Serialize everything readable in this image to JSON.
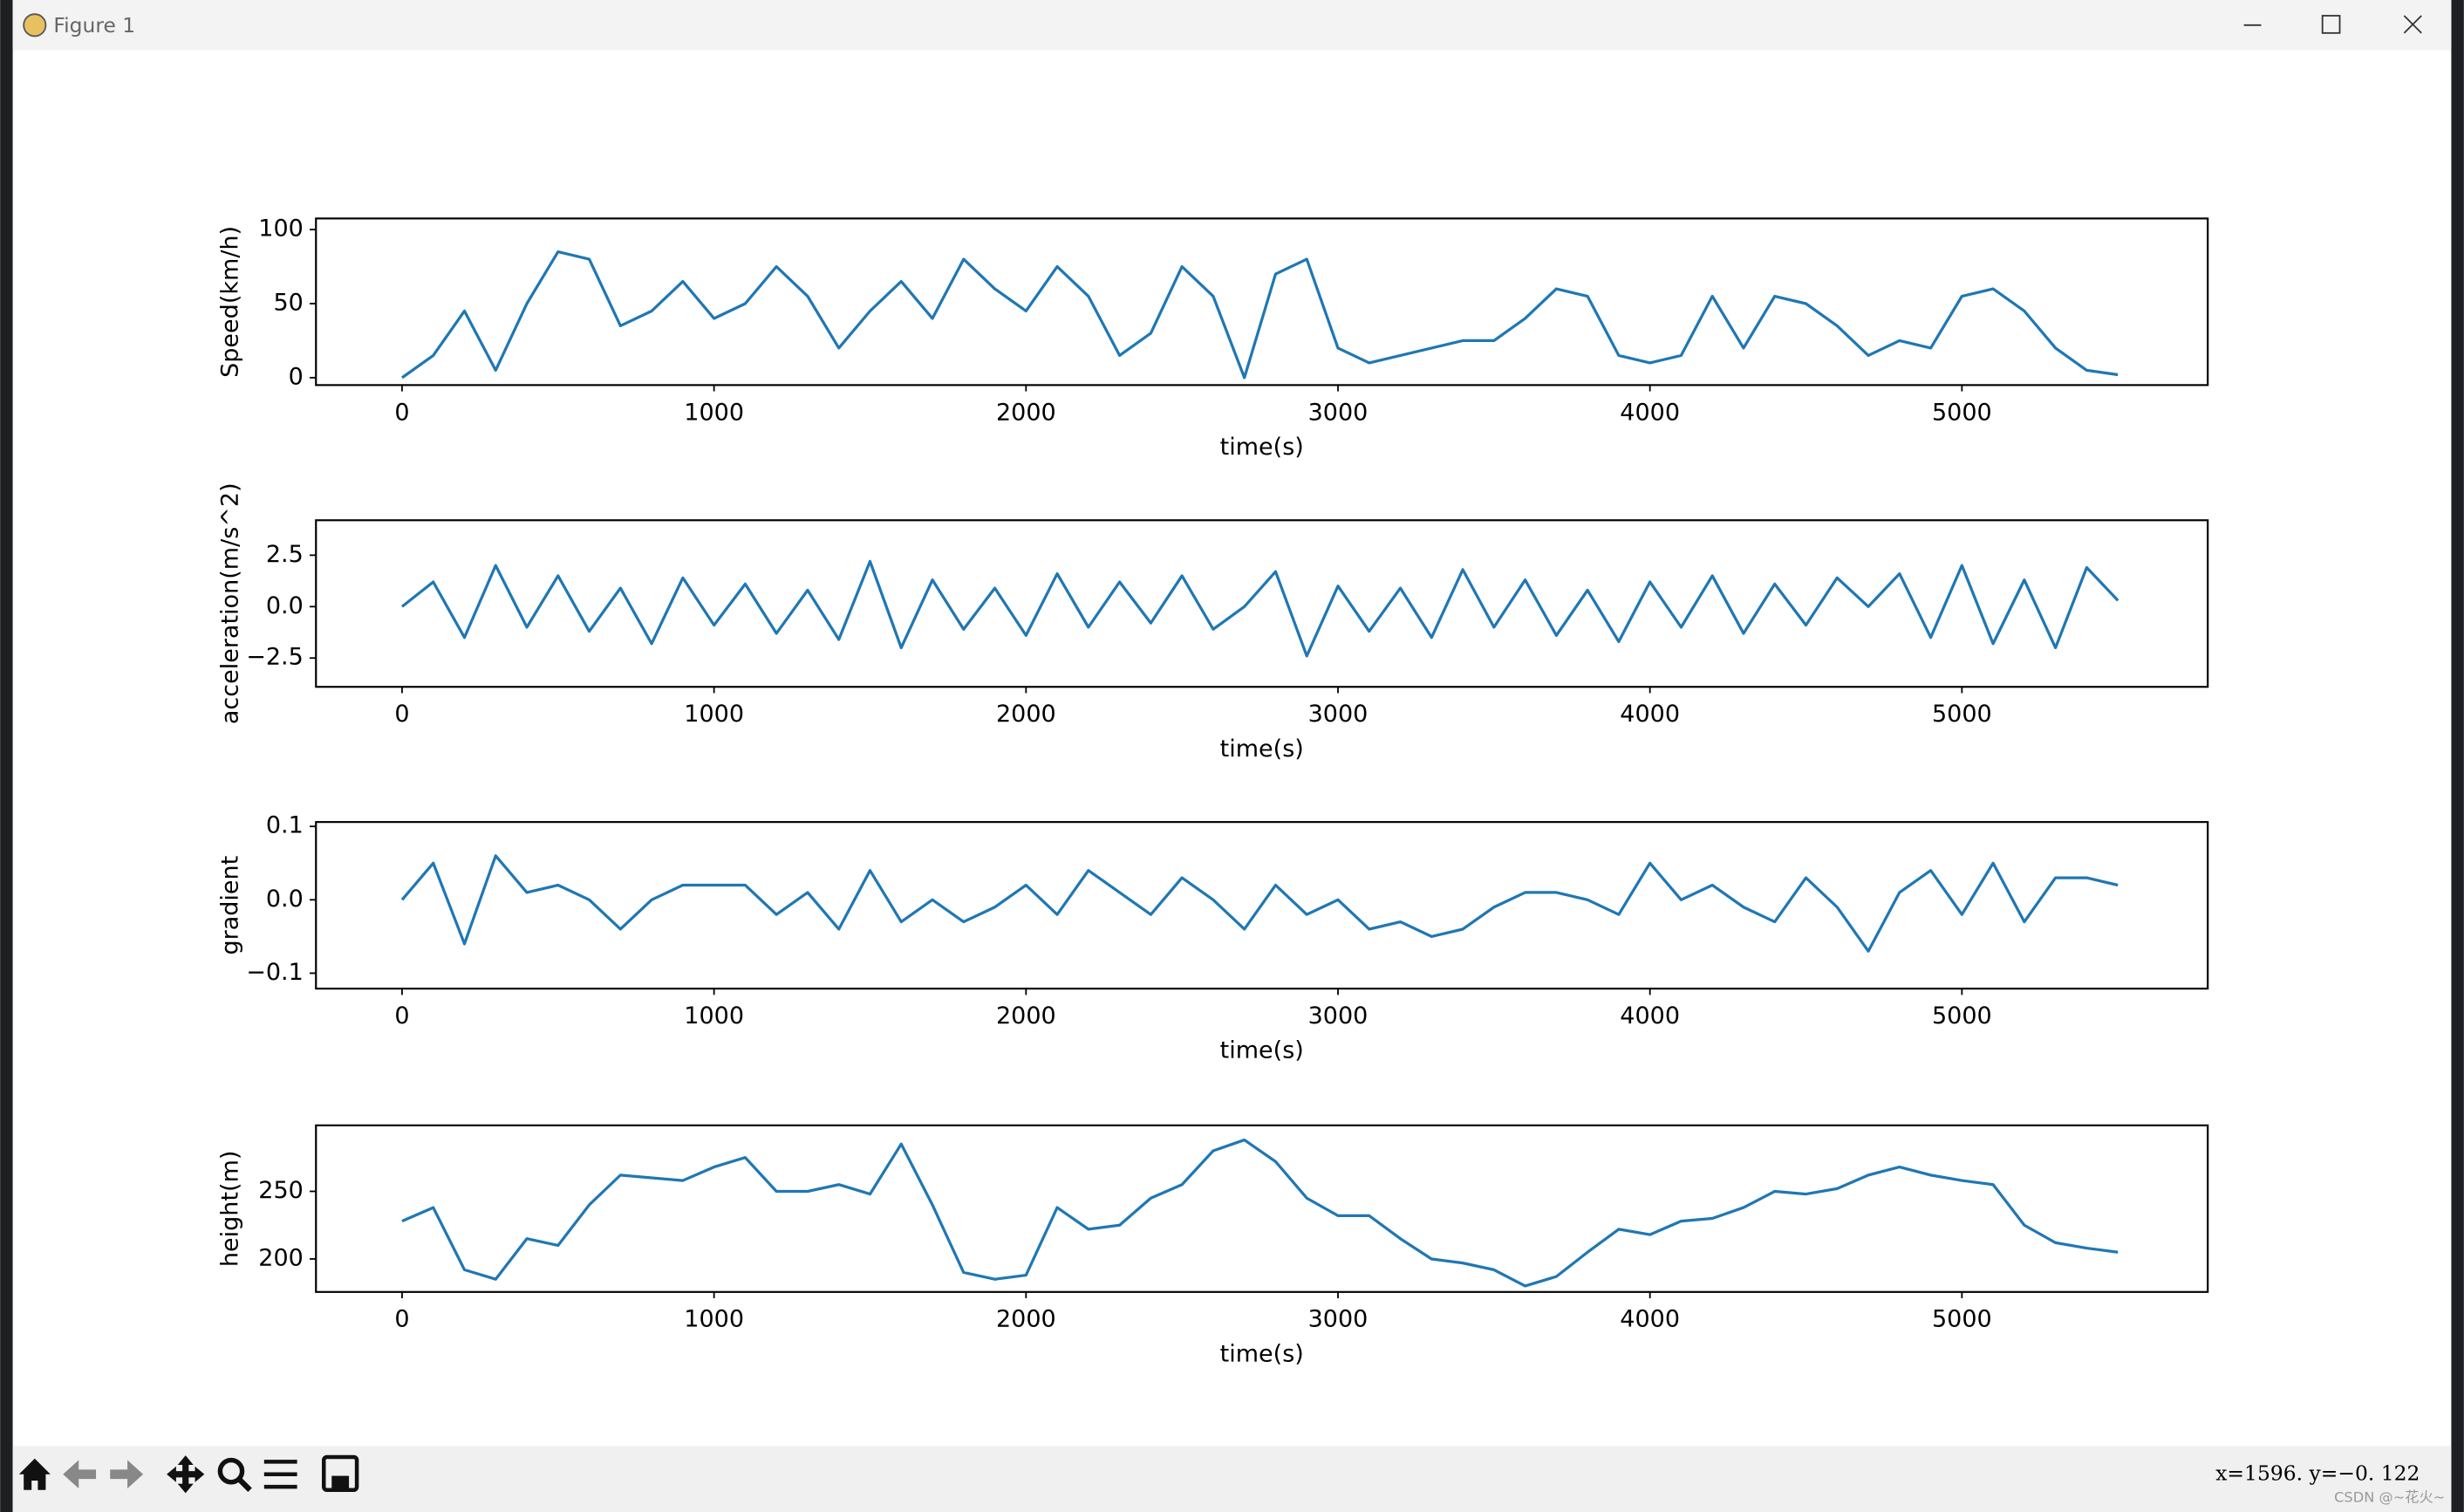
{
  "window": {
    "title": "Figure 1"
  },
  "status": "x=1596.   y=−0. 122",
  "watermark": "CSDN @~花火~",
  "chart_data": [
    {
      "type": "line",
      "xlabel": "time(s)",
      "ylabel": "Speed(km/h)",
      "color": "#1f77b4",
      "x": [
        0,
        100,
        200,
        300,
        400,
        500,
        600,
        700,
        800,
        900,
        1000,
        1100,
        1200,
        1300,
        1400,
        1500,
        1600,
        1700,
        1800,
        1900,
        2000,
        2100,
        2200,
        2300,
        2400,
        2500,
        2600,
        2700,
        2800,
        2900,
        3000,
        3100,
        3200,
        3300,
        3400,
        3500,
        3600,
        3700,
        3800,
        3900,
        4000,
        4100,
        4200,
        4300,
        4400,
        4500,
        4600,
        4700,
        4800,
        4900,
        5000,
        5100,
        5200,
        5300,
        5400,
        5500
      ],
      "values": [
        0,
        15,
        45,
        5,
        50,
        85,
        80,
        35,
        45,
        65,
        40,
        50,
        75,
        55,
        20,
        45,
        65,
        40,
        80,
        60,
        45,
        75,
        55,
        15,
        30,
        75,
        55,
        0,
        70,
        80,
        20,
        10,
        15,
        20,
        25,
        25,
        40,
        60,
        55,
        15,
        10,
        15,
        55,
        20,
        55,
        50,
        35,
        15,
        25,
        20,
        55,
        60,
        45,
        20,
        5,
        2
      ],
      "xlim": [
        -276,
        5788
      ],
      "ylim": [
        -5,
        107.5
      ],
      "xticks": [
        0,
        1000,
        2000,
        3000,
        4000,
        5000
      ],
      "yticks": [
        0,
        50,
        100
      ]
    },
    {
      "type": "line",
      "xlabel": "time(s)",
      "ylabel": "acceleration(m/s^2)",
      "color": "#1f77b4",
      "x": [
        0,
        100,
        200,
        300,
        400,
        500,
        600,
        700,
        800,
        900,
        1000,
        1100,
        1200,
        1300,
        1400,
        1500,
        1600,
        1700,
        1800,
        1900,
        2000,
        2100,
        2200,
        2300,
        2400,
        2500,
        2600,
        2700,
        2800,
        2900,
        3000,
        3100,
        3200,
        3300,
        3400,
        3500,
        3600,
        3700,
        3800,
        3900,
        4000,
        4100,
        4200,
        4300,
        4400,
        4500,
        4600,
        4700,
        4800,
        4900,
        5000,
        5100,
        5200,
        5300,
        5400,
        5500
      ],
      "values": [
        0,
        1.2,
        -1.5,
        2.0,
        -1.0,
        1.5,
        -1.2,
        0.9,
        -1.8,
        1.4,
        -0.9,
        1.1,
        -1.3,
        0.8,
        -1.6,
        2.2,
        -2.0,
        1.3,
        -1.1,
        0.9,
        -1.4,
        1.6,
        -1.0,
        1.2,
        -0.8,
        1.5,
        -1.1,
        0,
        1.7,
        -2.4,
        1.0,
        -1.2,
        0.9,
        -1.5,
        1.8,
        -1.0,
        1.3,
        -1.4,
        0.8,
        -1.7,
        1.2,
        -1.0,
        1.5,
        -1.3,
        1.1,
        -0.9,
        1.4,
        0,
        1.6,
        -1.5,
        2.0,
        -1.8,
        1.3,
        -2.0,
        1.9,
        0.3
      ],
      "xlim": [
        -276,
        5788
      ],
      "ylim": [
        -3.9,
        4.2
      ],
      "xticks": [
        0,
        1000,
        2000,
        3000,
        4000,
        5000
      ],
      "yticks": [
        {
          "value": -2.5,
          "label": "−2.5"
        },
        {
          "value": 0,
          "label": "0.0"
        },
        2.5
      ]
    },
    {
      "type": "line",
      "xlabel": "time(s)",
      "ylabel": "gradient",
      "color": "#1f77b4",
      "x": [
        0,
        100,
        200,
        300,
        400,
        500,
        600,
        700,
        800,
        900,
        1000,
        1100,
        1200,
        1300,
        1400,
        1500,
        1600,
        1700,
        1800,
        1900,
        2000,
        2100,
        2200,
        2300,
        2400,
        2500,
        2600,
        2700,
        2800,
        2900,
        3000,
        3100,
        3200,
        3300,
        3400,
        3500,
        3600,
        3700,
        3800,
        3900,
        4000,
        4100,
        4200,
        4300,
        4400,
        4500,
        4600,
        4700,
        4800,
        4900,
        5000,
        5100,
        5200,
        5300,
        5400,
        5500
      ],
      "values": [
        0,
        0.05,
        -0.06,
        0.06,
        0.01,
        0.02,
        0.0,
        -0.04,
        0.0,
        0.02,
        0.02,
        0.02,
        -0.02,
        0.01,
        -0.04,
        0.04,
        -0.03,
        0.0,
        -0.03,
        -0.01,
        0.02,
        -0.02,
        0.04,
        0.01,
        -0.02,
        0.03,
        0.0,
        -0.04,
        0.02,
        -0.02,
        0.0,
        -0.04,
        -0.03,
        -0.05,
        -0.04,
        -0.01,
        0.01,
        0.01,
        0.0,
        -0.02,
        0.05,
        0.0,
        0.02,
        -0.01,
        -0.03,
        0.03,
        -0.01,
        -0.07,
        0.01,
        0.04,
        -0.02,
        0.05,
        -0.03,
        0.03,
        0.03,
        0.02
      ],
      "xlim": [
        -276,
        5788
      ],
      "ylim": [
        -0.121,
        0.106
      ],
      "xticks": [
        0,
        1000,
        2000,
        3000,
        4000,
        5000
      ],
      "yticks": [
        {
          "value": -0.1,
          "label": "−0.1"
        },
        {
          "value": 0,
          "label": "0.0"
        },
        0.1
      ]
    },
    {
      "type": "line",
      "xlabel": "time(s)",
      "ylabel": "height(m)",
      "color": "#1f77b4",
      "x": [
        0,
        100,
        200,
        300,
        400,
        500,
        600,
        700,
        800,
        900,
        1000,
        1100,
        1200,
        1300,
        1400,
        1500,
        1600,
        1700,
        1800,
        1900,
        2000,
        2100,
        2200,
        2300,
        2400,
        2500,
        2600,
        2700,
        2800,
        2900,
        3000,
        3100,
        3200,
        3300,
        3400,
        3500,
        3600,
        3700,
        3800,
        3900,
        4000,
        4100,
        4200,
        4300,
        4400,
        4500,
        4600,
        4700,
        4800,
        4900,
        5000,
        5100,
        5200,
        5300,
        5400,
        5500
      ],
      "values": [
        228,
        238,
        192,
        185,
        215,
        210,
        240,
        262,
        260,
        258,
        268,
        275,
        250,
        250,
        255,
        248,
        285,
        240,
        190,
        185,
        188,
        238,
        222,
        225,
        245,
        255,
        280,
        288,
        272,
        245,
        232,
        232,
        215,
        200,
        197,
        192,
        180,
        187,
        205,
        222,
        218,
        228,
        230,
        238,
        250,
        248,
        252,
        262,
        268,
        262,
        258,
        255,
        225,
        212,
        208,
        205
      ],
      "xlim": [
        -276,
        5788
      ],
      "ylim": [
        175.6,
        298.8
      ],
      "xticks": [
        0,
        1000,
        2000,
        3000,
        4000,
        5000
      ],
      "yticks": [
        200,
        250
      ]
    }
  ]
}
